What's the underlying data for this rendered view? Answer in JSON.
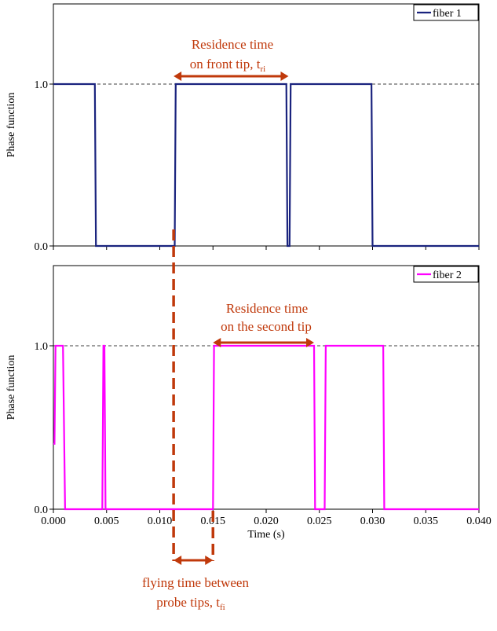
{
  "chart_data": [
    {
      "type": "line",
      "ylabel": "Phase function",
      "xlim": [
        0,
        0.04
      ],
      "ylim": [
        0,
        1.5
      ],
      "yticks": [
        "0.0",
        "1.0"
      ],
      "reference_line": 1.0,
      "legend": "top-right",
      "series": [
        {
          "name": "fiber 1",
          "color": "#1a237e",
          "x": [
            0,
            0.0039,
            0.004,
            0.0114,
            0.0115,
            0.0219,
            0.022,
            0.0222,
            0.0223,
            0.0299,
            0.03,
            0.04
          ],
          "y": [
            1,
            1,
            0,
            0,
            1,
            1,
            0,
            0,
            1,
            1,
            0,
            0
          ]
        }
      ]
    },
    {
      "type": "line",
      "ylabel": "Phase function",
      "xlabel": "Time (s)",
      "xlim": [
        0,
        0.04
      ],
      "ylim": [
        0,
        1.5
      ],
      "xticks": [
        "0.000",
        "0.005",
        "0.010",
        "0.015",
        "0.020",
        "0.025",
        "0.030",
        "0.035",
        "0.040"
      ],
      "yticks": [
        "0.0",
        "1.0"
      ],
      "reference_line": 1.0,
      "legend": "top-right",
      "series": [
        {
          "name": "fiber 2",
          "color": "#ff00ff",
          "x": [
            0,
            0.0001,
            0.0002,
            0.0009,
            0.0011,
            0.0046,
            0.0047,
            0.0048,
            0.0049,
            0.005,
            0.015,
            0.0151,
            0.0245,
            0.0246,
            0.0255,
            0.0256,
            0.031,
            0.0311,
            0.04
          ],
          "y": [
            0.4,
            0.4,
            1,
            1,
            0,
            0,
            1,
            1,
            0,
            0,
            0,
            1,
            1,
            0,
            0,
            1,
            1,
            0,
            0
          ]
        }
      ]
    }
  ],
  "annotations": {
    "residence_front_line1": "Residence time",
    "residence_front_line2": "on front tip, t",
    "residence_front_sub": "ri",
    "residence_second_line1": "Residence time",
    "residence_second_line2": "on the second tip",
    "flying_line1": "flying time between",
    "flying_line2": "probe tips, t",
    "flying_sub": "fi",
    "annotation_color": "#c0390b",
    "flying_start_time": 0.0113,
    "flying_end_time": 0.015,
    "residence_front_start": 0.0113,
    "residence_front_end": 0.0221,
    "residence_second_start": 0.015,
    "residence_second_end": 0.0245
  }
}
